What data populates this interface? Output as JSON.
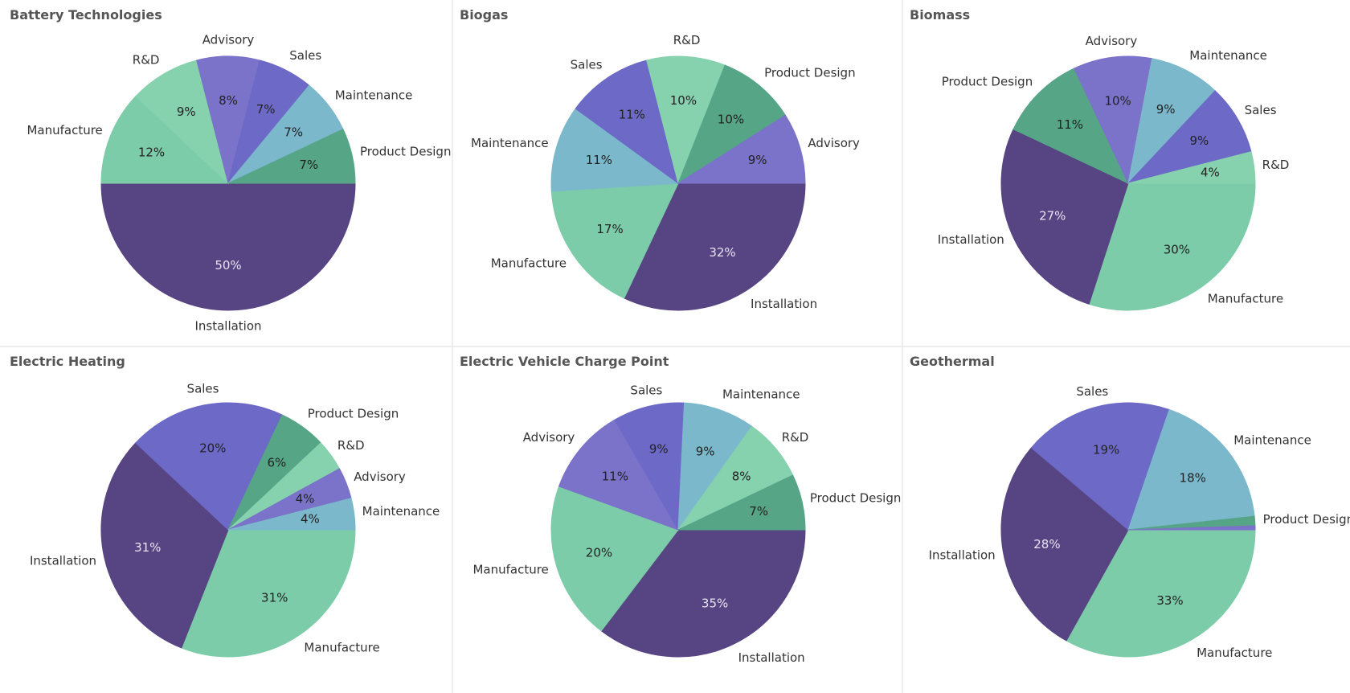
{
  "chart_data": [
    {
      "type": "pie",
      "title": "Battery Technologies",
      "categories": [
        "Installation",
        "Manufacture",
        "R&D",
        "Advisory",
        "Sales",
        "Maintenance",
        "Product Design"
      ],
      "values": [
        50,
        12,
        9,
        8,
        7,
        7,
        7
      ],
      "value_labels": [
        "50%",
        "12%",
        "9%",
        "8%",
        "7%",
        "7%",
        "7%"
      ],
      "colors": [
        "#574482",
        "#7ccba9",
        "#86d1ae",
        "#7b72c9",
        "#6d69c6",
        "#7bb8cc",
        "#56a587"
      ]
    },
    {
      "type": "pie",
      "title": "Biogas",
      "categories": [
        "Installation",
        "Manufacture",
        "Maintenance",
        "Sales",
        "R&D",
        "Product Design",
        "Advisory"
      ],
      "values": [
        32,
        17,
        11,
        11,
        10,
        10,
        9
      ],
      "value_labels": [
        "32%",
        "17%",
        "11%",
        "11%",
        "10%",
        "10%",
        "9%"
      ],
      "colors": [
        "#574482",
        "#7ccba9",
        "#7bb8cc",
        "#6d69c6",
        "#86d1ae",
        "#56a587",
        "#7b72c9"
      ]
    },
    {
      "type": "pie",
      "title": "Biomass",
      "categories": [
        "Manufacture",
        "Installation",
        "Product Design",
        "Advisory",
        "Maintenance",
        "Sales",
        "R&D"
      ],
      "values": [
        30,
        27,
        11,
        10,
        9,
        9,
        4
      ],
      "value_labels": [
        "30%",
        "27%",
        "11%",
        "10%",
        "9%",
        "9%",
        "4%"
      ],
      "colors": [
        "#7ccba9",
        "#574482",
        "#56a587",
        "#7b72c9",
        "#7bb8cc",
        "#6d69c6",
        "#86d1ae"
      ]
    },
    {
      "type": "pie",
      "title": "Electric Heating",
      "categories": [
        "Manufacture",
        "Installation",
        "Sales",
        "Product Design",
        "R&D",
        "Advisory",
        "Maintenance"
      ],
      "values": [
        31,
        31,
        20,
        6,
        4,
        4,
        4
      ],
      "value_labels": [
        "31%",
        "31%",
        "20%",
        "6%",
        null,
        "4%",
        "4%"
      ],
      "colors": [
        "#7ccba9",
        "#574482",
        "#6d69c6",
        "#56a587",
        "#86d1ae",
        "#7b72c9",
        "#7bb8cc"
      ]
    },
    {
      "type": "pie",
      "title": "Electric Vehicle Charge Point",
      "categories": [
        "Installation",
        "Manufacture",
        "Advisory",
        "Sales",
        "Maintenance",
        "R&D",
        "Product Design"
      ],
      "values": [
        35,
        20,
        11,
        9,
        9,
        8,
        7
      ],
      "value_labels": [
        "35%",
        "20%",
        "11%",
        "9%",
        "9%",
        "8%",
        "7%"
      ],
      "colors": [
        "#574482",
        "#7ccba9",
        "#7b72c9",
        "#6d69c6",
        "#7bb8cc",
        "#86d1ae",
        "#56a587"
      ]
    },
    {
      "type": "pie",
      "title": "Geothermal",
      "categories": [
        "Manufacture",
        "Installation",
        "Sales",
        "Maintenance",
        "Product Design",
        null
      ],
      "values": [
        33,
        28,
        19,
        18,
        1.2,
        0.5
      ],
      "value_labels": [
        "33%",
        "28%",
        "19%",
        "18%",
        null,
        null
      ],
      "colors": [
        "#7ccba9",
        "#574482",
        "#6d69c6",
        "#7bb8cc",
        "#56a587",
        "#7b72c9"
      ]
    }
  ]
}
